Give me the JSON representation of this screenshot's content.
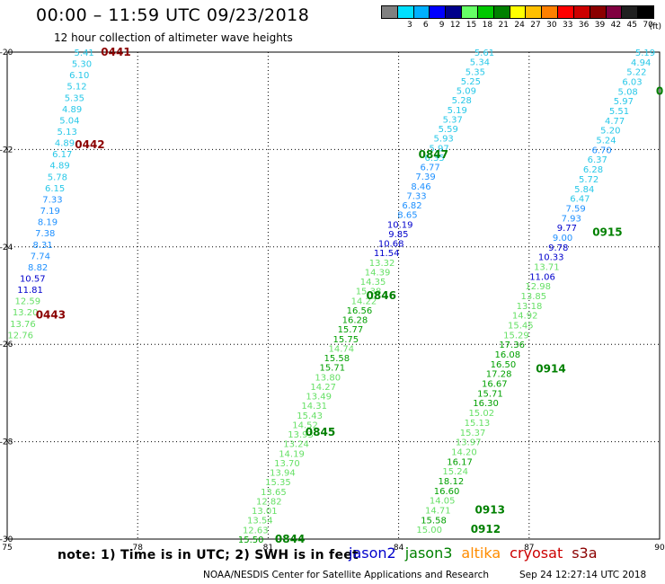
{
  "header": {
    "title": "00:00 – 11:59 UTC 09/23/2018",
    "subtitle": "12 hour collection of altimeter wave heights"
  },
  "legend": {
    "ticks": [
      "3",
      "6",
      "9",
      "12",
      "15",
      "18",
      "21",
      "24",
      "27",
      "30",
      "33",
      "36",
      "39",
      "42",
      "45",
      "70"
    ],
    "colors": [
      "#808080",
      "#00e0ff",
      "#00b0ff",
      "#0000ff",
      "#00008b",
      "#66ff66",
      "#00c800",
      "#008000",
      "#ffff00",
      "#ffc000",
      "#ff8000",
      "#ff0000",
      "#cc0000",
      "#8b0000",
      "#800040",
      "#202020",
      "#000000"
    ],
    "unit": "(ft)"
  },
  "map": {
    "lon_range": [
      75,
      90
    ],
    "lat_range": [
      -30,
      -20
    ],
    "x_ticks": [
      "75",
      "78",
      "81",
      "84",
      "87",
      "90"
    ],
    "y_ticks": [
      "-20",
      "-22",
      "-24",
      "-26",
      "-28",
      "-30"
    ],
    "tracks": [
      {
        "passes": [
          {
            "label": "0441",
            "label_lat": -20.0,
            "label_lon": 77.5,
            "color": "#8b0000"
          },
          {
            "label": "0442",
            "label_lat": -21.9,
            "label_lon": 76.9,
            "color": "#8b0000"
          },
          {
            "label": "0443",
            "label_lat": -25.4,
            "label_lon": 76.0,
            "color": "#8b0000"
          }
        ],
        "start_lat": -20.0,
        "start_lon": 77.0,
        "end_lat": -25.8,
        "end_lon": 75.6,
        "values": [
          "5.41",
          "5.30",
          "6.10",
          "5.12",
          "5.35",
          "4.89",
          "5.04",
          "5.13",
          "4.89",
          "6.17",
          "4.89",
          "5.78",
          "6.15",
          "7.33",
          "7.19",
          "8.19",
          "7.38",
          "8.31",
          "7.74",
          "8.82",
          "10.57",
          "11.81",
          "12.59",
          "13.20",
          "13.76",
          "12.76"
        ]
      },
      {
        "passes": [
          {
            "label": "0847",
            "label_lat": -22.1,
            "label_lon": 84.8,
            "color": "#008000"
          },
          {
            "label": "0846",
            "label_lat": -25.0,
            "label_lon": 83.6,
            "color": "#008000"
          },
          {
            "label": "0845",
            "label_lat": -27.8,
            "label_lon": 82.2,
            "color": "#008000"
          },
          {
            "label": "0844",
            "label_lat": -30.0,
            "label_lon": 81.5,
            "color": "#008000"
          }
        ],
        "start_lat": -20.0,
        "start_lon": 86.2,
        "end_lat": -30.0,
        "end_lon": 80.9,
        "values": [
          "5.61",
          "5.34",
          "5.35",
          "5.25",
          "5.09",
          "5.28",
          "5.19",
          "5.37",
          "5.59",
          "5.93",
          "5.97",
          "6.35",
          "6.77",
          "7.39",
          "8.46",
          "7.33",
          "6.82",
          "8.65",
          "10.19",
          "9.85",
          "10.68",
          "11.54",
          "13.32",
          "14.39",
          "14.35",
          "15.38",
          "14.22",
          "16.56",
          "16.28",
          "15.77",
          "15.75",
          "14.74",
          "15.58",
          "15.71",
          "13.80",
          "14.27",
          "13.49",
          "14.31",
          "15.43",
          "14.52",
          "13.93",
          "13.24",
          "14.19",
          "13.70",
          "13.94",
          "15.35",
          "13.65",
          "12.82",
          "13.01",
          "13.54",
          "12.63",
          "15.50"
        ]
      },
      {
        "passes": [
          {
            "label": "0",
            "label_lat": -20.8,
            "label_lon": 90.0,
            "color": "#008000"
          },
          {
            "label": "0915",
            "label_lat": -23.7,
            "label_lon": 88.8,
            "color": "#008000"
          },
          {
            "label": "0914",
            "label_lat": -26.5,
            "label_lon": 87.5,
            "color": "#008000"
          },
          {
            "label": "0913",
            "label_lat": -29.4,
            "label_lon": 86.1,
            "color": "#008000"
          },
          {
            "label": "0912",
            "label_lat": -29.8,
            "label_lon": 86.0,
            "color": "#008000"
          }
        ],
        "start_lat": -20.0,
        "start_lon": 89.9,
        "end_lat": -29.8,
        "end_lon": 85.0,
        "values": [
          "5.19",
          "4.94",
          "5.22",
          "6.03",
          "5.08",
          "5.97",
          "5.51",
          "4.77",
          "5.20",
          "5.24",
          "6.70",
          "6.37",
          "6.28",
          "5.72",
          "5.84",
          "6.47",
          "7.59",
          "7.93",
          "9.77",
          "9.00",
          "9.78",
          "10.33",
          "13.71",
          "11.06",
          "12.98",
          "13.85",
          "13.18",
          "14.92",
          "15.45",
          "15.29",
          "17.36",
          "16.08",
          "16.50",
          "17.28",
          "16.67",
          "15.71",
          "16.30",
          "15.02",
          "15.13",
          "15.37",
          "13.97",
          "14.20",
          "16.17",
          "15.24",
          "18.12",
          "16.60",
          "14.05",
          "14.71",
          "15.58",
          "15.00"
        ]
      }
    ]
  },
  "note_text": "note: 1) Time is in UTC; 2) SWH is in feet",
  "satellites": [
    {
      "name": "jason2",
      "color": "#0000cc"
    },
    {
      "name": "jason3",
      "color": "#008000"
    },
    {
      "name": "altika",
      "color": "#ff8c00"
    },
    {
      "name": "cryosat",
      "color": "#cc0000"
    },
    {
      "name": "s3a",
      "color": "#8b0000"
    }
  ],
  "footer": {
    "credit": "NOAA/NESDIS Center for Satellite Applications and Research",
    "timestamp": "Sep 24 12:27:14 UTC 2018"
  }
}
